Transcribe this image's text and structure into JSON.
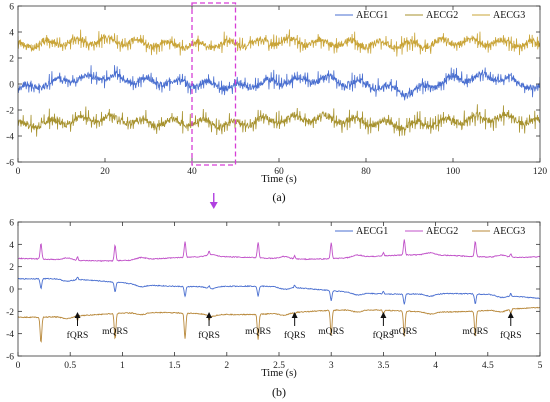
{
  "chart_data": [
    {
      "type": "line",
      "panel_label": "(a)",
      "xlabel": "Time (s)",
      "ylabel": "",
      "xlim": [
        0,
        120
      ],
      "ylim": [
        -6,
        6
      ],
      "x_ticks": [
        0,
        20,
        40,
        60,
        80,
        100,
        120
      ],
      "y_ticks": [
        -6,
        -4,
        -2,
        0,
        2,
        4,
        6
      ],
      "grid": false,
      "legend_position": "top-right",
      "highlight_window": {
        "x": [
          40,
          50
        ],
        "y": [
          -6,
          6.5
        ],
        "color": "#d63fd6",
        "style": "dashed"
      },
      "series": [
        {
          "name": "AECG1",
          "color": "#4a6fd0",
          "baseline": 0.1,
          "spike": 0.6,
          "trend": [
            [
              0,
              -0.4
            ],
            [
              10,
              0.3
            ],
            [
              20,
              0.6
            ],
            [
              30,
              0.2
            ],
            [
              40,
              0.1
            ],
            [
              50,
              -0.2
            ],
            [
              60,
              0.2
            ],
            [
              70,
              0.4
            ],
            [
              80,
              0.0
            ],
            [
              90,
              -0.6
            ],
            [
              100,
              0.4
            ],
            [
              110,
              0.6
            ],
            [
              120,
              -0.3
            ]
          ]
        },
        {
          "name": "AECG2",
          "color": "#a7922e",
          "baseline": 0.0,
          "spike": 0.7,
          "trend": [
            [
              0,
              -3.2
            ],
            [
              10,
              -2.9
            ],
            [
              20,
              -2.6
            ],
            [
              30,
              -3.0
            ],
            [
              40,
              -2.9
            ],
            [
              50,
              -3.1
            ],
            [
              60,
              -2.7
            ],
            [
              70,
              -2.6
            ],
            [
              80,
              -2.9
            ],
            [
              90,
              -3.2
            ],
            [
              100,
              -2.8
            ],
            [
              110,
              -2.5
            ],
            [
              120,
              -3.0
            ]
          ]
        },
        {
          "name": "AECG3",
          "color": "#c9a437",
          "baseline": 0.0,
          "spike": 0.6,
          "trend": [
            [
              0,
              3.0
            ],
            [
              10,
              3.2
            ],
            [
              20,
              3.4
            ],
            [
              30,
              3.1
            ],
            [
              40,
              3.0
            ],
            [
              50,
              3.1
            ],
            [
              60,
              3.3
            ],
            [
              70,
              3.2
            ],
            [
              80,
              3.1
            ],
            [
              90,
              3.0
            ],
            [
              100,
              3.3
            ],
            [
              110,
              3.2
            ],
            [
              120,
              3.0
            ]
          ]
        }
      ]
    },
    {
      "type": "line",
      "panel_label": "(b)",
      "xlabel": "Time (s)",
      "ylabel": "",
      "xlim": [
        0,
        5
      ],
      "ylim": [
        -6,
        6
      ],
      "x_ticks": [
        0,
        0.5,
        1,
        1.5,
        2,
        2.5,
        3,
        3.5,
        4,
        4.5,
        5
      ],
      "x_tick_labels": [
        "0",
        "0.5",
        "1",
        "1.5",
        "2",
        "2.5",
        "3",
        "3.5",
        "4",
        "4.5",
        "5"
      ],
      "y_ticks": [
        -6,
        -4,
        -2,
        0,
        2,
        4,
        6
      ],
      "grid": false,
      "legend_position": "top-right",
      "mqrs_times": [
        0.22,
        0.93,
        1.6,
        2.3,
        3.0,
        3.7,
        4.38
      ],
      "fqrs_times": [
        0.57,
        1.83,
        2.65,
        3.5,
        4.72
      ],
      "series": [
        {
          "name": "AECG1",
          "color": "#4a6fd0",
          "level": 0.9,
          "level_end": -0.8,
          "mqrs_amp": -0.9,
          "fqrs_amp": 0.25
        },
        {
          "name": "AECG2",
          "color": "#c050c8",
          "level": 2.6,
          "level_end": 3.0,
          "mqrs_amp": 1.4,
          "fqrs_amp": 0.3
        },
        {
          "name": "AECG3",
          "color": "#b8883a",
          "level": -2.4,
          "level_end": -1.8,
          "mqrs_amp": -2.3,
          "fqrs_amp": -0.4
        }
      ],
      "annotations": [
        {
          "text": "fQRS",
          "x": 0.57,
          "arrow": true
        },
        {
          "text": "mQRS",
          "x": 0.93,
          "arrow": false
        },
        {
          "text": "fQRS",
          "x": 1.83,
          "arrow": true
        },
        {
          "text": "mQRS",
          "x": 2.3,
          "arrow": false
        },
        {
          "text": "fQRS",
          "x": 2.65,
          "arrow": true
        },
        {
          "text": "mQRS",
          "x": 3.0,
          "arrow": false
        },
        {
          "text": "fQRS",
          "x": 3.5,
          "arrow": true
        },
        {
          "text": "mQRS",
          "x": 3.7,
          "arrow": false
        },
        {
          "text": "mQRS",
          "x": 4.38,
          "arrow": false
        },
        {
          "text": "fQRS",
          "x": 4.72,
          "arrow": true
        }
      ]
    }
  ],
  "between_arrow_color": "#b040e0"
}
